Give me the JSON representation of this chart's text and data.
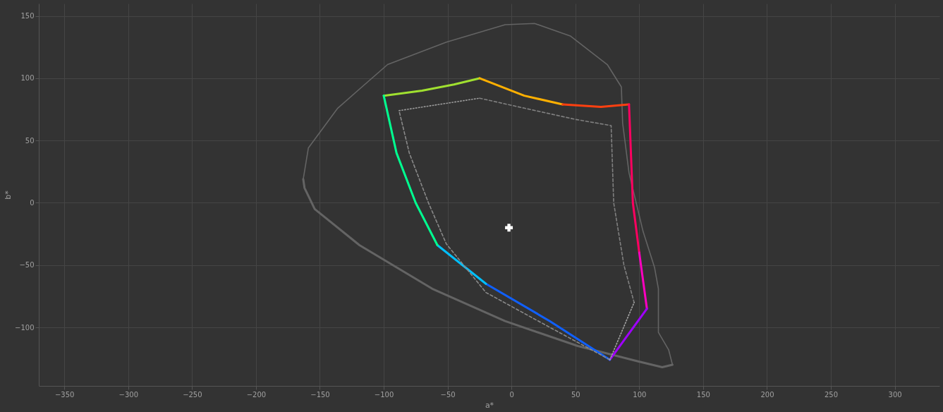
{
  "chart_data": {
    "type": "line",
    "xlabel": "a*",
    "ylabel": "b*",
    "xlim": [
      -370,
      335
    ],
    "ylim": [
      -147,
      160
    ],
    "xticks": [
      -350,
      -300,
      -250,
      -200,
      -150,
      -100,
      -50,
      0,
      50,
      100,
      150,
      200,
      250,
      300
    ],
    "yticks": [
      -100,
      -50,
      0,
      50,
      100,
      150
    ],
    "grid": true,
    "series": [
      {
        "color": "#646464",
        "line_style": "solid",
        "x": [
          -163,
          -159,
          -136,
          -97,
          -51,
          -5,
          18,
          46,
          75,
          86,
          87,
          92,
          103,
          112,
          115,
          115,
          123,
          126
        ],
        "values": [
          19,
          44,
          76,
          111,
          129,
          143,
          144,
          134,
          111,
          93,
          64,
          24,
          -23,
          -52,
          -69,
          -104,
          -118,
          -130
        ]
      },
      {
        "color": "#646464",
        "line_style": "solid",
        "x": [
          126,
          118,
          98,
          52,
          -5,
          -62,
          -119,
          -154,
          -162,
          -163
        ],
        "values": [
          -130,
          -132,
          -127,
          -115,
          -95,
          -69,
          -34,
          -5,
          12,
          19
        ]
      },
      {
        "color": "#a0e030",
        "line_style": "solid",
        "x": [
          -100,
          -70,
          -45,
          -25
        ],
        "values": [
          86,
          90,
          95,
          100
        ]
      },
      {
        "color": "#ffb000",
        "line_style": "solid",
        "x": [
          -25,
          10,
          40
        ],
        "values": [
          100,
          86,
          79
        ]
      },
      {
        "color": "#ff4010",
        "line_style": "solid",
        "x": [
          40,
          70,
          92
        ],
        "values": [
          79,
          77,
          79
        ]
      },
      {
        "color": "#ff0060",
        "line_style": "solid",
        "x": [
          92,
          95,
          100
        ],
        "values": [
          79,
          0,
          -40
        ]
      },
      {
        "color": "#ff00c0",
        "line_style": "solid",
        "x": [
          100,
          106
        ],
        "values": [
          -40,
          -85
        ]
      },
      {
        "color": "#a000ff",
        "line_style": "solid",
        "x": [
          106,
          77
        ],
        "values": [
          -85,
          -126
        ]
      },
      {
        "color": "#1060ff",
        "line_style": "solid",
        "x": [
          77,
          30,
          -20
        ],
        "values": [
          -126,
          -95,
          -65
        ]
      },
      {
        "color": "#00c0ff",
        "line_style": "solid",
        "x": [
          -20,
          -58
        ],
        "values": [
          -65,
          -34
        ]
      },
      {
        "color": "#00ff90",
        "line_style": "solid",
        "x": [
          -58,
          -75,
          -90,
          -100
        ],
        "values": [
          -34,
          0,
          40,
          86
        ]
      },
      {
        "color": "#808080",
        "line_style": "dashed",
        "x": [
          -25,
          10,
          50,
          78,
          80,
          88,
          96
        ],
        "values": [
          84,
          76,
          67,
          62,
          0,
          -50,
          -80
        ]
      },
      {
        "color": "#8a8a8a",
        "line_style": "dashed",
        "x": [
          77,
          30,
          -20,
          -51,
          -65,
          -80,
          -88
        ],
        "values": [
          -126,
          -100,
          -72,
          -33,
          0,
          40,
          74
        ]
      },
      {
        "color": "#9a9a9a",
        "line_style": "dotted",
        "x": [
          -88,
          -25
        ],
        "values": [
          74,
          84
        ]
      },
      {
        "color": "#a4a4a4",
        "line_style": "dotted",
        "x": [
          77,
          96
        ],
        "values": [
          -126,
          -80
        ]
      },
      {
        "type": "scatter",
        "marker": "cross",
        "color": "#ffffff",
        "x": [
          -2
        ],
        "values": [
          -20
        ]
      }
    ]
  }
}
